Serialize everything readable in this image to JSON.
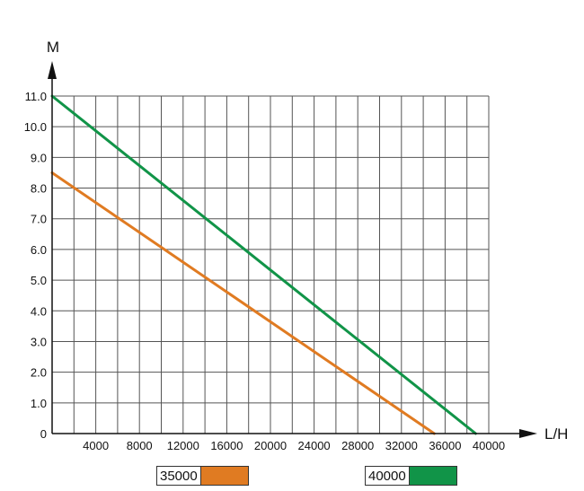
{
  "chart_data": {
    "type": "line",
    "xlabel": "L/H",
    "ylabel": "M",
    "xlim": [
      0,
      40000
    ],
    "ylim": [
      0,
      11
    ],
    "x_ticks": [
      "4000",
      "8000",
      "12000",
      "16000",
      "20000",
      "24000",
      "28000",
      "32000",
      "36000",
      "40000"
    ],
    "y_ticks": [
      "0",
      "1.0",
      "2.0",
      "3.0",
      "4.0",
      "5.0",
      "6.0",
      "7.0",
      "8.0",
      "9.0",
      "10.0",
      "11.0"
    ],
    "grid": true,
    "legend_position": "bottom",
    "series": [
      {
        "name": "35000",
        "color": "#e07b22",
        "points": [
          [
            0,
            8.5
          ],
          [
            35000,
            0
          ]
        ]
      },
      {
        "name": "40000",
        "color": "#119448",
        "points": [
          [
            0,
            11.0
          ],
          [
            38800,
            0
          ]
        ]
      }
    ]
  }
}
